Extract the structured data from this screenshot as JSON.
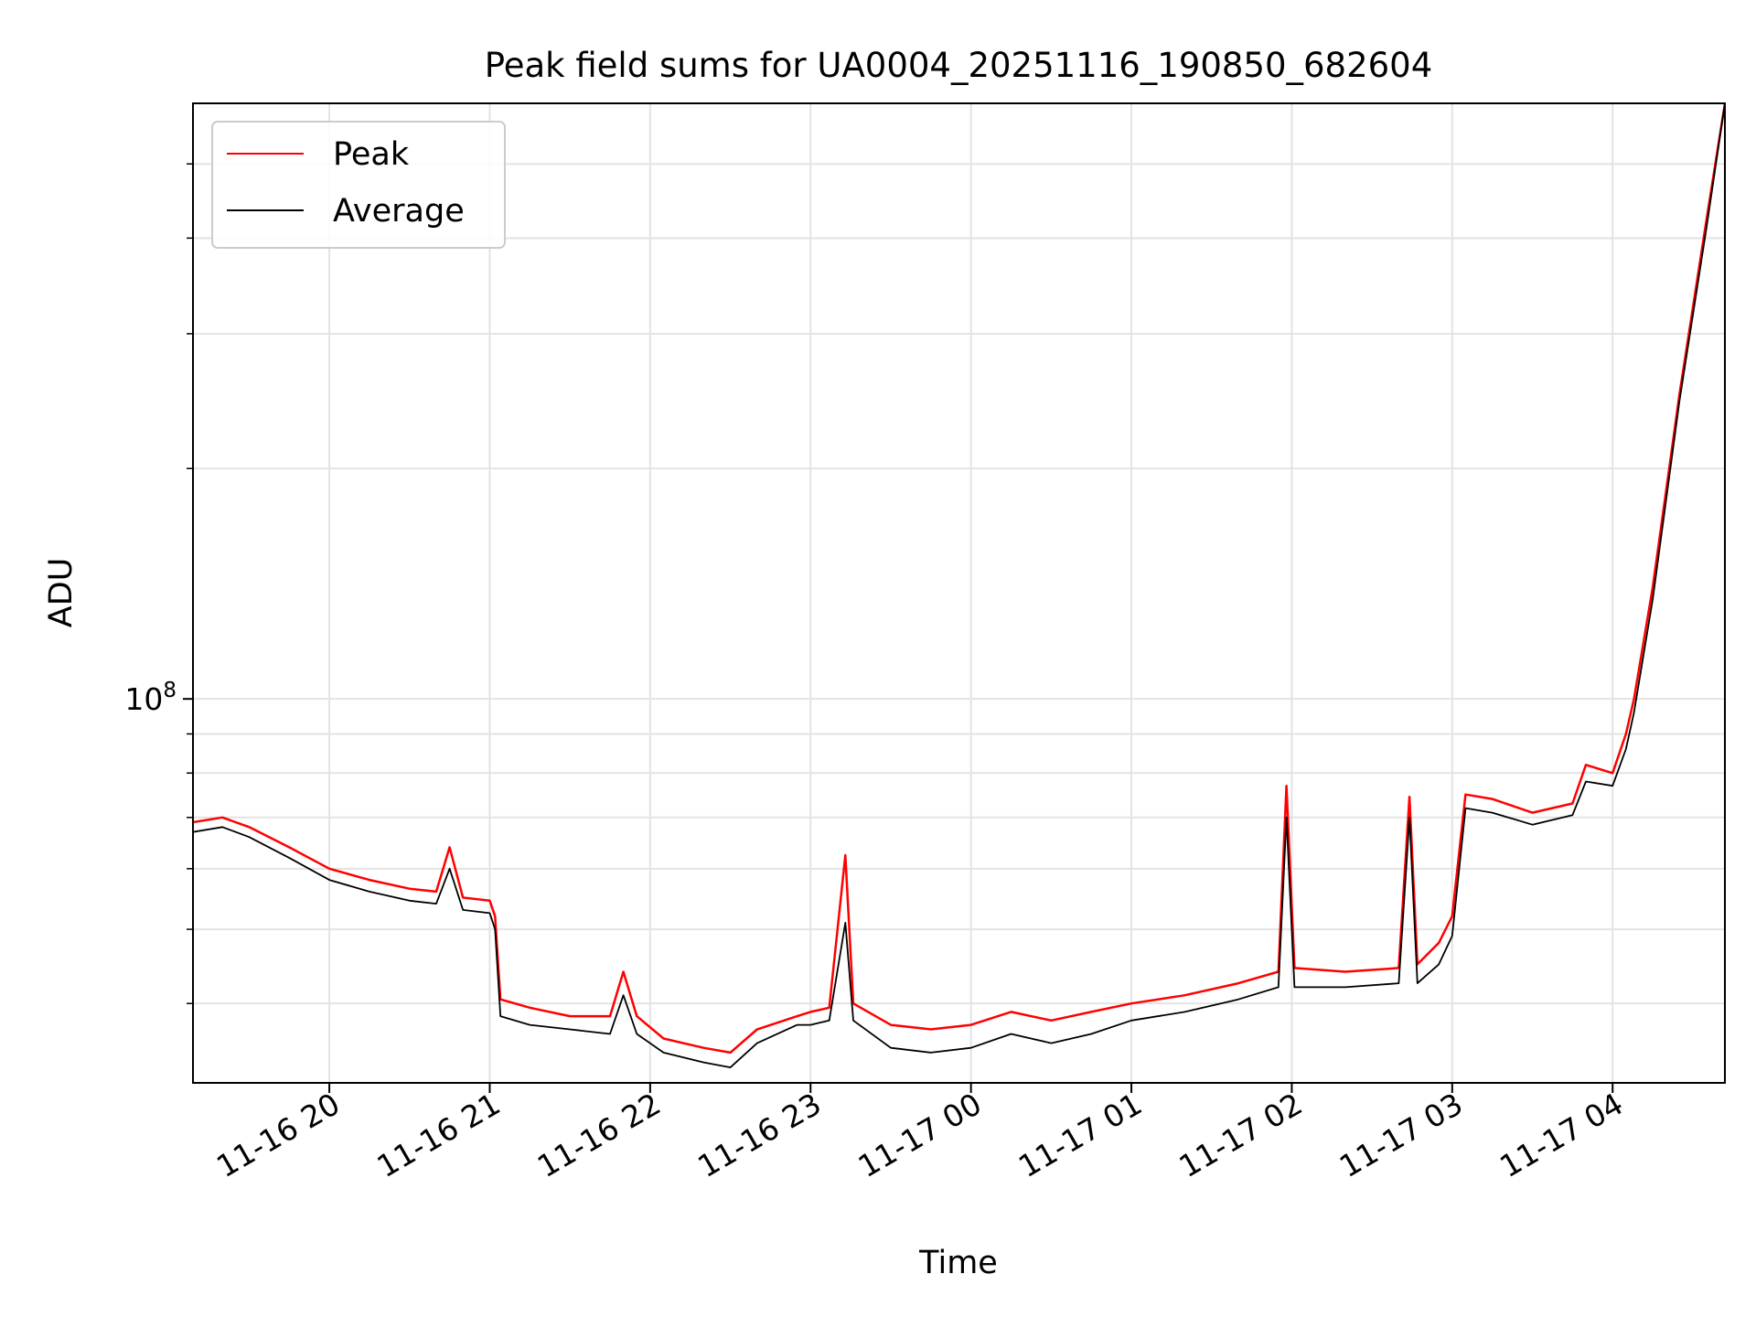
{
  "chart_data": {
    "type": "line",
    "title": "Peak field sums for UA0004_20251116_190850_682604",
    "xlabel": "Time",
    "ylabel": "ADU",
    "yscale": "log",
    "grid": true,
    "legend_position": "top-left",
    "xlim": [
      "2025-11-16 19:09",
      "2025-11-17 04:42"
    ],
    "ylim": [
      31500000,
      600000000
    ],
    "x_ticks": [
      {
        "time": "2025-11-16 20:00",
        "label": "11-16 20"
      },
      {
        "time": "2025-11-16 21:00",
        "label": "11-16 21"
      },
      {
        "time": "2025-11-16 22:00",
        "label": "11-16 22"
      },
      {
        "time": "2025-11-16 23:00",
        "label": "11-16 23"
      },
      {
        "time": "2025-11-17 00:00",
        "label": "11-17 00"
      },
      {
        "time": "2025-11-17 01:00",
        "label": "11-17 01"
      },
      {
        "time": "2025-11-17 02:00",
        "label": "11-17 02"
      },
      {
        "time": "2025-11-17 03:00",
        "label": "11-17 03"
      },
      {
        "time": "2025-11-17 04:00",
        "label": "11-17 04"
      }
    ],
    "y_major_ticks": [
      {
        "value": 100000000,
        "base": "10",
        "exp": "8"
      }
    ],
    "y_minor_ticks": [
      40000000,
      50000000,
      60000000,
      70000000,
      80000000,
      90000000,
      200000000,
      300000000,
      400000000,
      500000000
    ],
    "series": [
      {
        "name": "Peak",
        "color": "#ff0000",
        "points": [
          [
            "2025-11-16 19:09",
            69000000
          ],
          [
            "2025-11-16 19:20",
            70000000
          ],
          [
            "2025-11-16 19:30",
            68000000
          ],
          [
            "2025-11-16 19:45",
            64000000
          ],
          [
            "2025-11-16 20:00",
            60000000
          ],
          [
            "2025-11-16 20:15",
            58000000
          ],
          [
            "2025-11-16 20:30",
            56500000
          ],
          [
            "2025-11-16 20:40",
            56000000
          ],
          [
            "2025-11-16 20:45",
            64000000
          ],
          [
            "2025-11-16 20:50",
            55000000
          ],
          [
            "2025-11-16 21:00",
            54500000
          ],
          [
            "2025-11-16 21:02",
            52000000
          ],
          [
            "2025-11-16 21:04",
            40500000
          ],
          [
            "2025-11-16 21:15",
            39500000
          ],
          [
            "2025-11-16 21:30",
            38500000
          ],
          [
            "2025-11-16 21:45",
            38500000
          ],
          [
            "2025-11-16 21:50",
            44000000
          ],
          [
            "2025-11-16 21:55",
            38500000
          ],
          [
            "2025-11-16 22:05",
            36000000
          ],
          [
            "2025-11-16 22:20",
            35000000
          ],
          [
            "2025-11-16 22:30",
            34500000
          ],
          [
            "2025-11-16 22:40",
            37000000
          ],
          [
            "2025-11-16 22:55",
            38500000
          ],
          [
            "2025-11-16 23:00",
            39000000
          ],
          [
            "2025-11-16 23:07",
            39500000
          ],
          [
            "2025-11-16 23:13",
            62500000
          ],
          [
            "2025-11-16 23:16",
            40000000
          ],
          [
            "2025-11-16 23:30",
            37500000
          ],
          [
            "2025-11-16 23:45",
            37000000
          ],
          [
            "2025-11-17 00:00",
            37500000
          ],
          [
            "2025-11-17 00:15",
            39000000
          ],
          [
            "2025-11-17 00:30",
            38000000
          ],
          [
            "2025-11-17 00:45",
            39000000
          ],
          [
            "2025-11-17 01:00",
            40000000
          ],
          [
            "2025-11-17 01:20",
            41000000
          ],
          [
            "2025-11-17 01:40",
            42500000
          ],
          [
            "2025-11-17 01:55",
            44000000
          ],
          [
            "2025-11-17 01:58",
            77000000
          ],
          [
            "2025-11-17 02:01",
            44500000
          ],
          [
            "2025-11-17 02:20",
            44000000
          ],
          [
            "2025-11-17 02:40",
            44500000
          ],
          [
            "2025-11-17 02:44",
            74500000
          ],
          [
            "2025-11-17 02:47",
            45000000
          ],
          [
            "2025-11-17 02:55",
            48000000
          ],
          [
            "2025-11-17 03:00",
            52000000
          ],
          [
            "2025-11-17 03:05",
            75000000
          ],
          [
            "2025-11-17 03:15",
            74000000
          ],
          [
            "2025-11-17 03:30",
            71000000
          ],
          [
            "2025-11-17 03:45",
            73000000
          ],
          [
            "2025-11-17 03:50",
            82000000
          ],
          [
            "2025-11-17 04:00",
            80000000
          ],
          [
            "2025-11-17 04:05",
            90000000
          ],
          [
            "2025-11-17 04:08",
            100000000
          ],
          [
            "2025-11-17 04:15",
            140000000
          ],
          [
            "2025-11-17 04:25",
            250000000
          ],
          [
            "2025-11-17 04:35",
            420000000
          ],
          [
            "2025-11-17 04:42",
            600000000
          ]
        ]
      },
      {
        "name": "Average",
        "color": "#000000",
        "points": [
          [
            "2025-11-16 19:09",
            67000000
          ],
          [
            "2025-11-16 19:20",
            68000000
          ],
          [
            "2025-11-16 19:30",
            66000000
          ],
          [
            "2025-11-16 19:45",
            62000000
          ],
          [
            "2025-11-16 20:00",
            58000000
          ],
          [
            "2025-11-16 20:15",
            56000000
          ],
          [
            "2025-11-16 20:30",
            54500000
          ],
          [
            "2025-11-16 20:40",
            54000000
          ],
          [
            "2025-11-16 20:45",
            60000000
          ],
          [
            "2025-11-16 20:50",
            53000000
          ],
          [
            "2025-11-16 21:00",
            52500000
          ],
          [
            "2025-11-16 21:02",
            50000000
          ],
          [
            "2025-11-16 21:04",
            38500000
          ],
          [
            "2025-11-16 21:15",
            37500000
          ],
          [
            "2025-11-16 21:30",
            37000000
          ],
          [
            "2025-11-16 21:45",
            36500000
          ],
          [
            "2025-11-16 21:50",
            41000000
          ],
          [
            "2025-11-16 21:55",
            36500000
          ],
          [
            "2025-11-16 22:05",
            34500000
          ],
          [
            "2025-11-16 22:20",
            33500000
          ],
          [
            "2025-11-16 22:30",
            33000000
          ],
          [
            "2025-11-16 22:40",
            35500000
          ],
          [
            "2025-11-16 22:55",
            37500000
          ],
          [
            "2025-11-16 23:00",
            37500000
          ],
          [
            "2025-11-16 23:07",
            38000000
          ],
          [
            "2025-11-16 23:13",
            51000000
          ],
          [
            "2025-11-16 23:16",
            38000000
          ],
          [
            "2025-11-16 23:30",
            35000000
          ],
          [
            "2025-11-16 23:45",
            34500000
          ],
          [
            "2025-11-17 00:00",
            35000000
          ],
          [
            "2025-11-17 00:15",
            36500000
          ],
          [
            "2025-11-17 00:30",
            35500000
          ],
          [
            "2025-11-17 00:45",
            36500000
          ],
          [
            "2025-11-17 01:00",
            38000000
          ],
          [
            "2025-11-17 01:20",
            39000000
          ],
          [
            "2025-11-17 01:40",
            40500000
          ],
          [
            "2025-11-17 01:55",
            42000000
          ],
          [
            "2025-11-17 01:58",
            70000000
          ],
          [
            "2025-11-17 02:01",
            42000000
          ],
          [
            "2025-11-17 02:20",
            42000000
          ],
          [
            "2025-11-17 02:40",
            42500000
          ],
          [
            "2025-11-17 02:44",
            70000000
          ],
          [
            "2025-11-17 02:47",
            42500000
          ],
          [
            "2025-11-17 02:55",
            45000000
          ],
          [
            "2025-11-17 03:00",
            49000000
          ],
          [
            "2025-11-17 03:05",
            72000000
          ],
          [
            "2025-11-17 03:15",
            71000000
          ],
          [
            "2025-11-17 03:30",
            68500000
          ],
          [
            "2025-11-17 03:45",
            70500000
          ],
          [
            "2025-11-17 03:50",
            78000000
          ],
          [
            "2025-11-17 04:00",
            77000000
          ],
          [
            "2025-11-17 04:05",
            86000000
          ],
          [
            "2025-11-17 04:08",
            96000000
          ],
          [
            "2025-11-17 04:15",
            135000000
          ],
          [
            "2025-11-17 04:25",
            245000000
          ],
          [
            "2025-11-17 04:35",
            410000000
          ],
          [
            "2025-11-17 04:42",
            600000000
          ]
        ]
      }
    ]
  }
}
